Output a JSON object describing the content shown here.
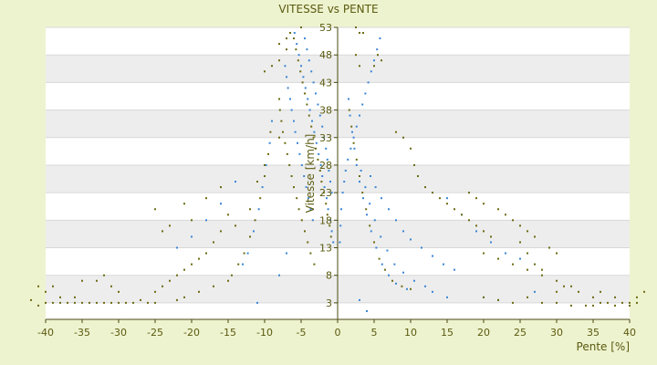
{
  "chart_data": {
    "type": "scatter",
    "title": "VITESSE vs PENTE",
    "xlabel": "Pente [%]",
    "ylabel": "Vitesse [km/h]",
    "xlim": [
      -40,
      40
    ],
    "ylim": [
      0,
      53
    ],
    "x_ticks": [
      -40,
      -35,
      -30,
      -25,
      -20,
      -15,
      -10,
      -5,
      0,
      5,
      10,
      15,
      20,
      25,
      30,
      35,
      40
    ],
    "y_ticks": [
      3,
      8,
      13,
      18,
      23,
      28,
      33,
      38,
      43,
      48,
      53
    ],
    "grid": true,
    "legend": "none",
    "colors": {
      "background": "#eef3cf",
      "plot_band_light": "#ffffff",
      "plot_band_dark": "#ededed",
      "axis": "#4a4a10",
      "text": "#5a5a10",
      "series_blue": "#3a86d4",
      "series_olive": "#6b6b12"
    },
    "series": [
      {
        "color": "#3a86d4",
        "points": [
          [
            -5.9,
            52
          ],
          [
            -5.6,
            50
          ],
          [
            -5.3,
            48
          ],
          [
            -5.0,
            46
          ],
          [
            -4.7,
            44
          ],
          [
            -4.4,
            42
          ],
          [
            -4.1,
            40
          ],
          [
            -3.8,
            38
          ],
          [
            -3.5,
            36
          ],
          [
            -3.2,
            34
          ],
          [
            -2.9,
            32
          ],
          [
            -2.6,
            30
          ],
          [
            -2.3,
            28
          ],
          [
            -2.1,
            26
          ],
          [
            -1.8,
            24
          ],
          [
            -1.5,
            22
          ],
          [
            -1.3,
            20
          ],
          [
            -1.0,
            18
          ],
          [
            -0.8,
            16
          ],
          [
            -0.6,
            14
          ],
          [
            -4.5,
            51
          ],
          [
            -4.2,
            49
          ],
          [
            -3.9,
            47
          ],
          [
            -3.6,
            45
          ],
          [
            -3.3,
            43
          ],
          [
            -3.0,
            41
          ],
          [
            -2.7,
            39
          ],
          [
            -2.4,
            37
          ],
          [
            -2.1,
            35
          ],
          [
            -1.9,
            33
          ],
          [
            -1.6,
            31
          ],
          [
            -1.4,
            29
          ],
          [
            -1.2,
            27
          ],
          [
            -1.0,
            25
          ],
          [
            -0.8,
            23
          ],
          [
            -7.2,
            46
          ],
          [
            -7.0,
            44
          ],
          [
            -6.8,
            42
          ],
          [
            -6.5,
            40
          ],
          [
            -6.3,
            38
          ],
          [
            -6.0,
            36
          ],
          [
            -5.8,
            34
          ],
          [
            -5.5,
            32
          ],
          [
            -5.2,
            30
          ],
          [
            -4.9,
            28
          ],
          [
            -4.6,
            26
          ],
          [
            -4.3,
            24
          ],
          [
            -4.0,
            22
          ],
          [
            -3.7,
            20
          ],
          [
            -3.4,
            18
          ],
          [
            -9.0,
            36
          ],
          [
            -9.3,
            32
          ],
          [
            -9.8,
            28
          ],
          [
            -10.3,
            24
          ],
          [
            -10.8,
            20
          ],
          [
            -11.5,
            16
          ],
          [
            -12.3,
            12
          ],
          [
            -13.0,
            10
          ],
          [
            -14.0,
            25
          ],
          [
            -16.0,
            21
          ],
          [
            -18.0,
            18
          ],
          [
            -20.0,
            15
          ],
          [
            -22.0,
            13
          ],
          [
            -11,
            3
          ],
          [
            -8,
            8
          ],
          [
            -7,
            12
          ],
          [
            5.8,
            51
          ],
          [
            5.4,
            49
          ],
          [
            5.0,
            47
          ],
          [
            4.6,
            45
          ],
          [
            4.2,
            43
          ],
          [
            3.8,
            41
          ],
          [
            3.4,
            39
          ],
          [
            3.0,
            37
          ],
          [
            2.6,
            35
          ],
          [
            2.2,
            33
          ],
          [
            1.8,
            31
          ],
          [
            1.4,
            29
          ],
          [
            1.1,
            27
          ],
          [
            0.9,
            25
          ],
          [
            0.7,
            23
          ],
          [
            0.5,
            20
          ],
          [
            0.4,
            17
          ],
          [
            0.3,
            14
          ],
          [
            1.5,
            40
          ],
          [
            1.7,
            37
          ],
          [
            2.0,
            34
          ],
          [
            2.3,
            31
          ],
          [
            2.6,
            28
          ],
          [
            3.0,
            25
          ],
          [
            3.5,
            22
          ],
          [
            4.0,
            19
          ],
          [
            4.6,
            16
          ],
          [
            5.3,
            13
          ],
          [
            6.1,
            10
          ],
          [
            7.0,
            8
          ],
          [
            8.0,
            6.5
          ],
          [
            9.5,
            5.5
          ],
          [
            3.2,
            27
          ],
          [
            3.8,
            24
          ],
          [
            4.4,
            21
          ],
          [
            5.1,
            18
          ],
          [
            5.9,
            15
          ],
          [
            6.8,
            12.5
          ],
          [
            7.8,
            10
          ],
          [
            9.0,
            8.5
          ],
          [
            10.5,
            7
          ],
          [
            12.0,
            6
          ],
          [
            4.5,
            26
          ],
          [
            5.2,
            24
          ],
          [
            6.0,
            22
          ],
          [
            7.0,
            20
          ],
          [
            8.0,
            18
          ],
          [
            9.0,
            16
          ],
          [
            10.0,
            14.5
          ],
          [
            11.5,
            13
          ],
          [
            13.0,
            11.5
          ],
          [
            14.5,
            10
          ],
          [
            16.0,
            9
          ],
          [
            15,
            22
          ],
          [
            17,
            19
          ],
          [
            19,
            16
          ],
          [
            21,
            14
          ],
          [
            23,
            12
          ],
          [
            25,
            11
          ],
          [
            3,
            3.5
          ],
          [
            4,
            1.5
          ],
          [
            13,
            5
          ],
          [
            15,
            4
          ],
          [
            20,
            4
          ],
          [
            22,
            3.5
          ],
          [
            27,
            5
          ]
        ]
      },
      {
        "color": "#6b6b12",
        "points": [
          [
            -6.0,
            51
          ],
          [
            -5.7,
            49
          ],
          [
            -5.4,
            47
          ],
          [
            -5.1,
            45
          ],
          [
            -4.8,
            43
          ],
          [
            -4.5,
            41
          ],
          [
            -4.2,
            39
          ],
          [
            -3.9,
            37
          ],
          [
            -3.6,
            35
          ],
          [
            -3.3,
            33
          ],
          [
            -3.0,
            31
          ],
          [
            -2.7,
            29
          ],
          [
            -2.4,
            27
          ],
          [
            -2.2,
            25
          ],
          [
            -1.9,
            23
          ],
          [
            -1.6,
            21
          ],
          [
            -1.4,
            19
          ],
          [
            -1.1,
            17
          ],
          [
            -0.9,
            15
          ],
          [
            -8.0,
            40
          ],
          [
            -7.9,
            38
          ],
          [
            -7.7,
            36
          ],
          [
            -7.5,
            34
          ],
          [
            -7.2,
            32
          ],
          [
            -6.9,
            30
          ],
          [
            -6.6,
            28
          ],
          [
            -6.3,
            26
          ],
          [
            -6.0,
            24
          ],
          [
            -5.6,
            22
          ],
          [
            -5.3,
            20
          ],
          [
            -4.9,
            18
          ],
          [
            -4.5,
            16
          ],
          [
            -4.1,
            14
          ],
          [
            -3.7,
            12
          ],
          [
            -3.2,
            10
          ],
          [
            -9.2,
            34
          ],
          [
            -9.5,
            30
          ],
          [
            -10.0,
            26
          ],
          [
            -10.6,
            22
          ],
          [
            -11.3,
            18
          ],
          [
            -12.0,
            15
          ],
          [
            -12.8,
            12
          ],
          [
            -13.6,
            10
          ],
          [
            -14.5,
            8
          ],
          [
            -10,
            45
          ],
          [
            -9,
            46
          ],
          [
            -8,
            47
          ],
          [
            -7,
            49
          ],
          [
            -6.5,
            52
          ],
          [
            -5,
            53
          ],
          [
            -8,
            50
          ],
          [
            -7,
            51
          ],
          [
            -12,
            20
          ],
          [
            -14,
            17
          ],
          [
            -15,
            19
          ],
          [
            -16,
            16
          ],
          [
            -17,
            14
          ],
          [
            -18,
            12
          ],
          [
            -19,
            11
          ],
          [
            -20,
            10
          ],
          [
            -21,
            9
          ],
          [
            -22,
            8
          ],
          [
            -23,
            7
          ],
          [
            -24,
            6
          ],
          [
            -25,
            5
          ],
          [
            -20,
            18
          ],
          [
            -21,
            21
          ],
          [
            -23,
            17
          ],
          [
            -24,
            16
          ],
          [
            -25,
            20
          ],
          [
            -18,
            22
          ],
          [
            -16,
            24
          ],
          [
            -15,
            7
          ],
          [
            -17,
            6
          ],
          [
            -19,
            5
          ],
          [
            -21,
            4
          ],
          [
            -22,
            3.5
          ],
          [
            -25,
            3
          ],
          [
            -26,
            3
          ],
          [
            -27,
            3.5
          ],
          [
            -28,
            3
          ],
          [
            -29,
            3
          ],
          [
            -30,
            3
          ],
          [
            -31,
            3
          ],
          [
            -32,
            3
          ],
          [
            -33,
            3
          ],
          [
            -34,
            3
          ],
          [
            -35,
            3
          ],
          [
            -36,
            3
          ],
          [
            -37,
            3
          ],
          [
            -38,
            3
          ],
          [
            -39,
            3
          ],
          [
            -40,
            3
          ],
          [
            -41,
            2.5
          ],
          [
            -42,
            3.5
          ],
          [
            -33,
            7
          ],
          [
            -32,
            8
          ],
          [
            -31,
            6
          ],
          [
            -30,
            5
          ],
          [
            -35,
            7
          ],
          [
            -36,
            4
          ],
          [
            -38,
            4
          ],
          [
            -40,
            5
          ],
          [
            -41,
            6
          ],
          [
            -39,
            6
          ],
          [
            -10,
            28
          ],
          [
            -11,
            25
          ],
          [
            -8,
            33
          ],
          [
            2.5,
            53
          ],
          [
            3.0,
            52
          ],
          [
            3.5,
            52
          ],
          [
            2.5,
            48
          ],
          [
            3.0,
            46
          ],
          [
            6,
            47
          ],
          [
            5.5,
            48
          ],
          [
            5.0,
            46
          ],
          [
            1.6,
            38
          ],
          [
            1.9,
            35
          ],
          [
            2.2,
            32
          ],
          [
            2.6,
            29
          ],
          [
            3.0,
            26
          ],
          [
            3.4,
            23
          ],
          [
            3.9,
            20
          ],
          [
            4.4,
            17
          ],
          [
            5.0,
            14
          ],
          [
            5.7,
            11
          ],
          [
            6.5,
            9
          ],
          [
            7.5,
            7
          ],
          [
            8.8,
            6
          ],
          [
            10,
            5.5
          ],
          [
            8,
            34
          ],
          [
            9,
            33
          ],
          [
            10,
            31
          ],
          [
            10.5,
            28
          ],
          [
            11,
            26
          ],
          [
            12,
            24
          ],
          [
            13,
            23
          ],
          [
            14,
            22
          ],
          [
            15,
            21
          ],
          [
            16,
            20
          ],
          [
            17,
            19
          ],
          [
            18,
            18
          ],
          [
            19,
            17
          ],
          [
            20,
            16
          ],
          [
            21,
            15
          ],
          [
            18,
            23
          ],
          [
            19,
            22
          ],
          [
            20,
            21
          ],
          [
            22,
            20
          ],
          [
            23,
            19
          ],
          [
            24,
            18
          ],
          [
            25,
            17
          ],
          [
            26,
            16
          ],
          [
            27,
            15
          ],
          [
            20,
            12
          ],
          [
            22,
            11
          ],
          [
            24,
            10
          ],
          [
            26,
            9
          ],
          [
            28,
            8
          ],
          [
            30,
            7
          ],
          [
            32,
            6
          ],
          [
            25,
            14
          ],
          [
            26,
            12
          ],
          [
            27,
            10
          ],
          [
            28,
            9
          ],
          [
            29,
            13
          ],
          [
            30,
            12
          ],
          [
            20,
            4
          ],
          [
            22,
            3.5
          ],
          [
            24,
            3
          ],
          [
            26,
            4
          ],
          [
            28,
            3
          ],
          [
            30,
            3
          ],
          [
            32,
            2.5
          ],
          [
            34,
            2.5
          ],
          [
            35,
            2.5
          ],
          [
            36,
            3
          ],
          [
            37,
            3
          ],
          [
            38,
            2.5
          ],
          [
            39,
            3
          ],
          [
            40,
            2.5
          ],
          [
            41,
            3
          ],
          [
            42,
            5
          ],
          [
            30,
            5
          ],
          [
            31,
            6
          ],
          [
            33,
            5
          ],
          [
            35,
            4
          ],
          [
            36,
            5
          ],
          [
            38,
            4
          ],
          [
            40,
            3
          ],
          [
            41,
            4
          ]
        ]
      }
    ]
  }
}
